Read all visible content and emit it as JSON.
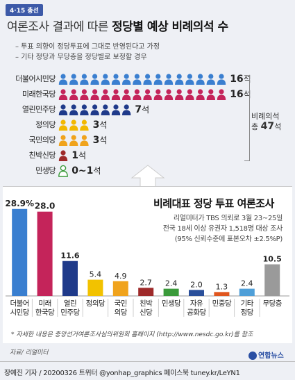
{
  "badge": "4·15 총선",
  "title_plain": "여론조사 결과에 따른 ",
  "title_highlight": "정당별 예상 비례의석 수",
  "notes": [
    "– 투표 의향이 정당투표에 그대로 반영된다고 가정",
    "– 기타 정당과 무당층을 정당별로 보정할 경우"
  ],
  "seat_projection": {
    "seat_unit": "석",
    "parties": [
      {
        "name": "더불어시민당",
        "seats": 16,
        "seat_label": "16",
        "color": "#3a7fd0",
        "icon_type": "solid"
      },
      {
        "name": "미래한국당",
        "seats": 16,
        "seat_label": "16",
        "color": "#c4245a",
        "icon_type": "solid"
      },
      {
        "name": "열린민주당",
        "seats": 7,
        "seat_label": "7",
        "color": "#1f3a8a",
        "icon_type": "solid"
      },
      {
        "name": "정의당",
        "seats": 3,
        "seat_label": "3",
        "color": "#f2b800",
        "icon_type": "solid"
      },
      {
        "name": "국민의당",
        "seats": 3,
        "seat_label": "3",
        "color": "#f0a31c",
        "icon_type": "solid"
      },
      {
        "name": "친박신당",
        "seats": 1,
        "seat_label": "1",
        "color": "#9e2a2a",
        "icon_type": "solid"
      },
      {
        "name": "민생당",
        "seats": 1,
        "seat_label": "0~1",
        "color": "#3a9a3a",
        "icon_type": "outline"
      }
    ],
    "total_label": "비례의석",
    "total_prefix": "총 ",
    "total_value": "47",
    "total_suffix": "석"
  },
  "chart_data": {
    "type": "bar",
    "title": "비례대표 정당 투표 여론조사",
    "subtitle_lines": [
      "리얼미터가 TBS 의뢰로 3월 23~25일",
      "전국 18세 이상 유권자 1,518명 대상 조사",
      "(95% 신뢰수준에 표본오차 ±2.5%P)"
    ],
    "categories": [
      [
        "더불어",
        "시민당"
      ],
      [
        "미래",
        "한국당"
      ],
      [
        "열린",
        "민주당"
      ],
      [
        "정의당"
      ],
      [
        "국민",
        "의당"
      ],
      [
        "친박",
        "신당"
      ],
      [
        "민생당"
      ],
      [
        "자유",
        "공화당"
      ],
      [
        "민중당"
      ],
      [
        "기타",
        "정당"
      ],
      [
        "무당층"
      ]
    ],
    "values": [
      28.9,
      28.0,
      11.6,
      5.4,
      4.9,
      2.7,
      2.4,
      2.0,
      1.3,
      2.4,
      10.5
    ],
    "value_labels": [
      "28.9%",
      "28.0",
      "11.6",
      "5.4",
      "4.9",
      "2.7",
      "2.4",
      "2.0",
      "1.3",
      "2.4",
      "10.5"
    ],
    "colors": [
      "#3a7fd0",
      "#c4245a",
      "#1f3a8a",
      "#f2c200",
      "#f0a31c",
      "#9e2a2a",
      "#3a9a3a",
      "#2a4f9a",
      "#e0561e",
      "#4f9fd8",
      "#9a9a9a"
    ],
    "ylim": [
      0,
      30
    ]
  },
  "footnote": "* 자세한 내용은 중앙선거여론조사심의위원회 홈페이지 (http://www.nesdc.go.kr)를 참조",
  "source": "자료/ 리얼미터",
  "credit": "장예진 기자 / 20200326 트위터 @yonhap_graphics  페이스북 tuney.kr/LeYN1",
  "logo": "연합뉴스"
}
